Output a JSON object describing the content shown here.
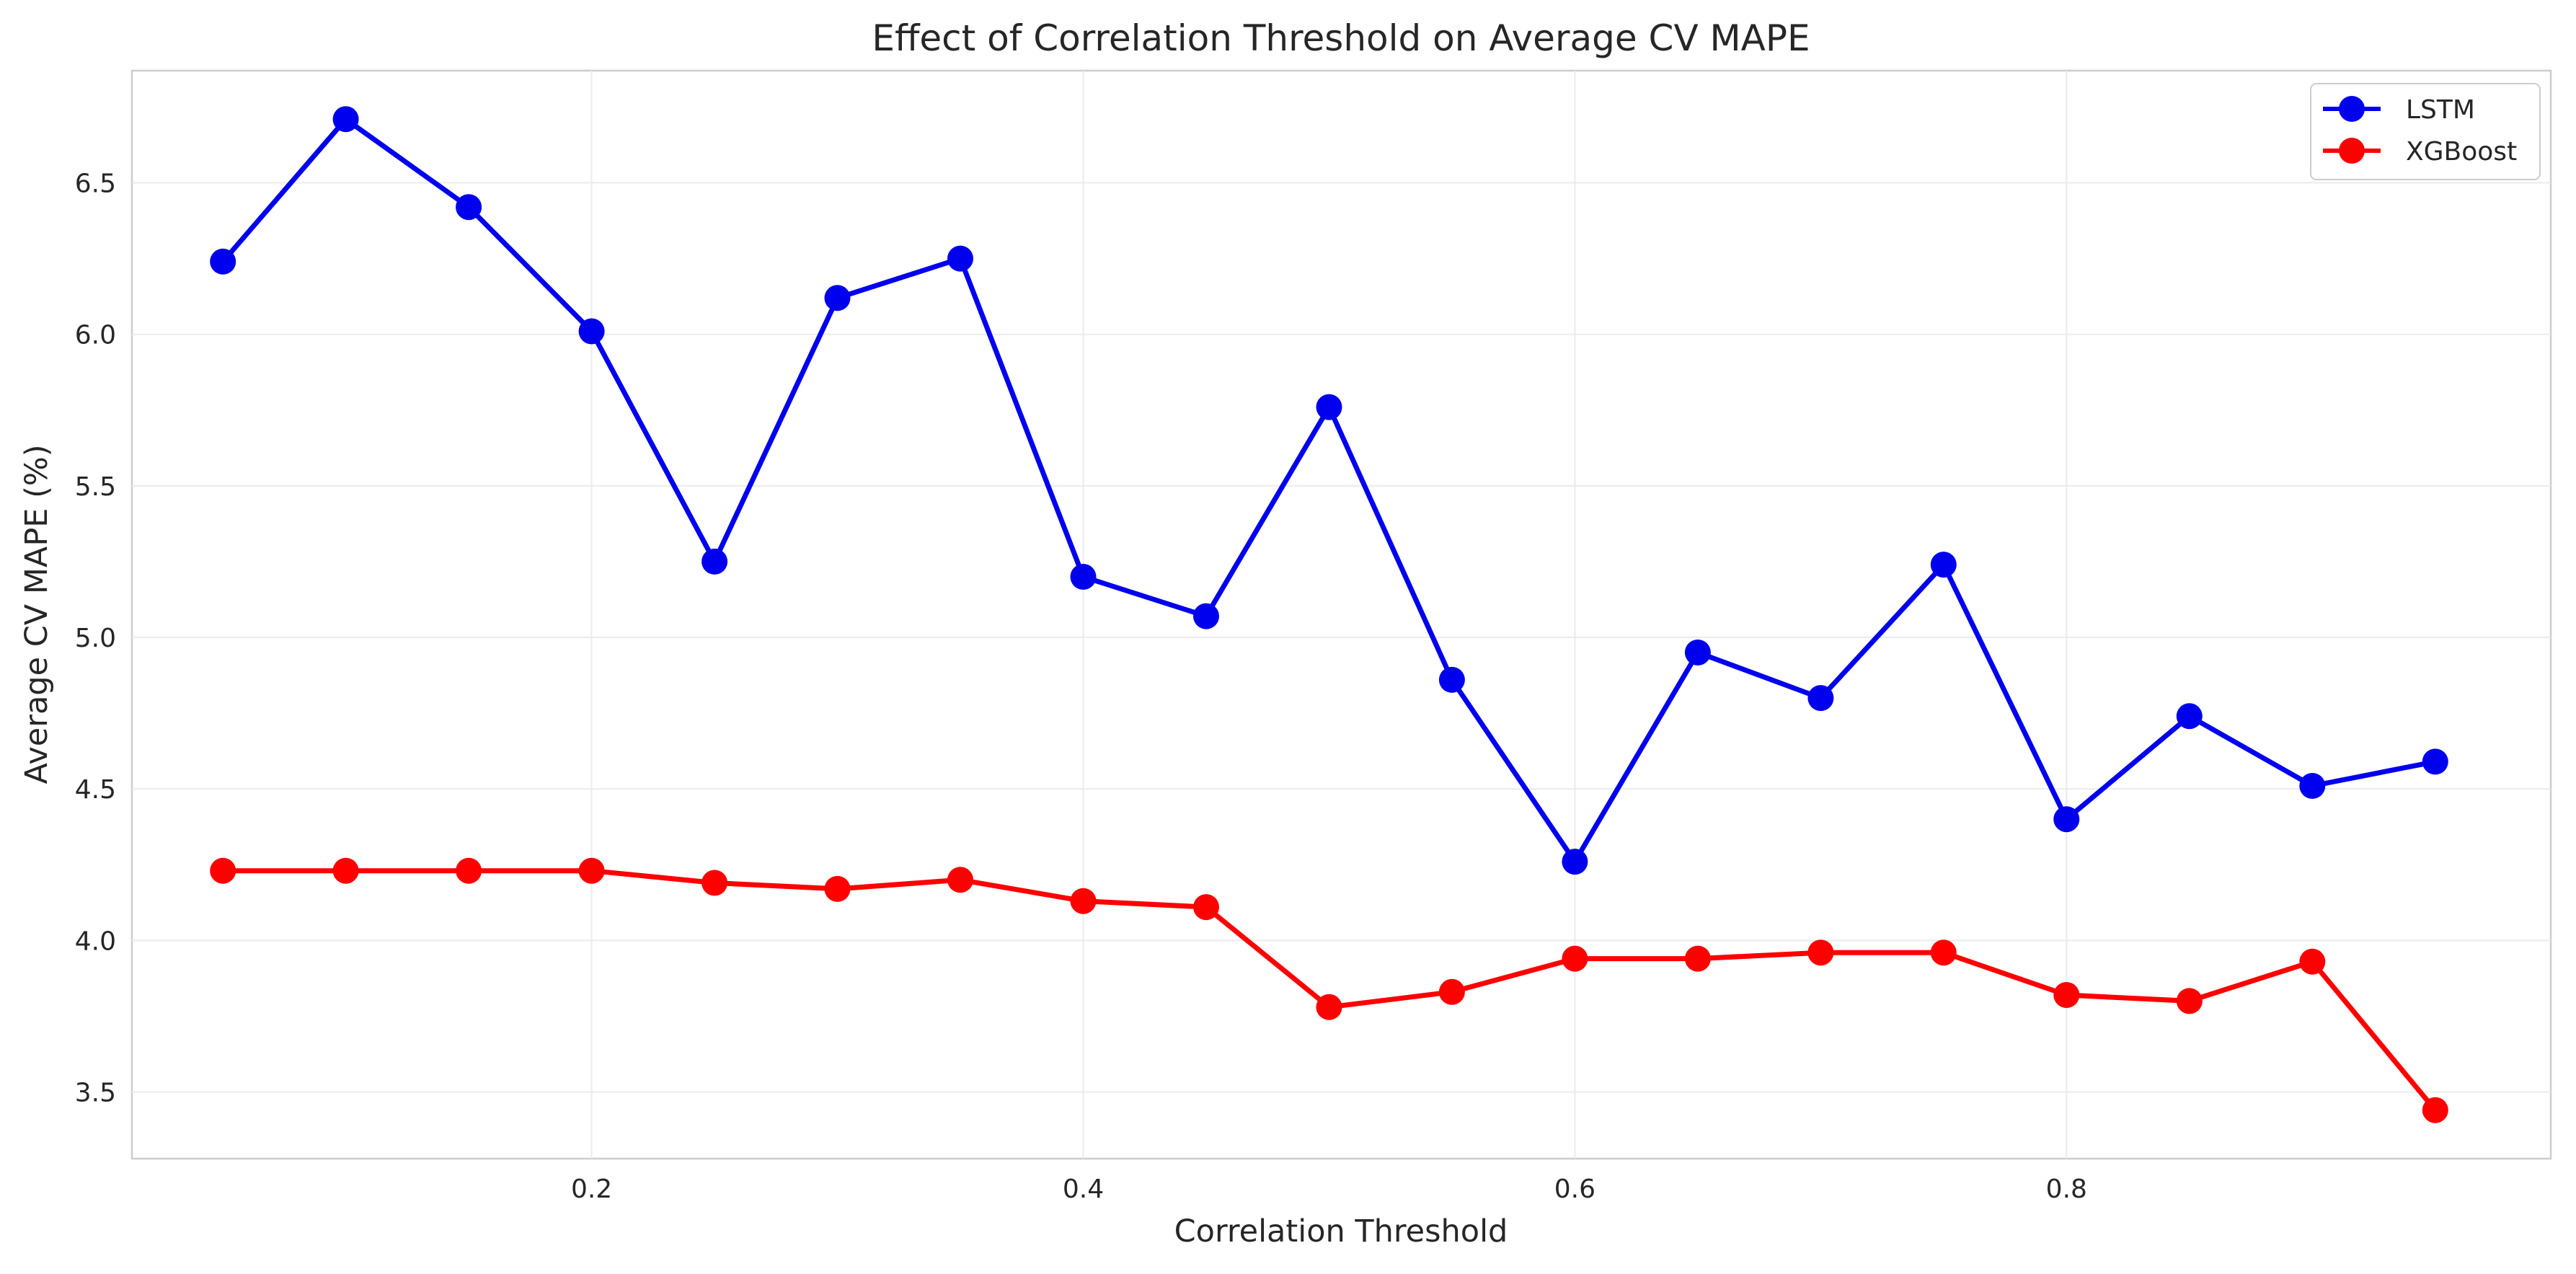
{
  "chart_data": {
    "type": "line",
    "title": "Effect of Correlation Threshold on Average CV MAPE",
    "xlabel": "Correlation Threshold",
    "ylabel": "Average CV MAPE (%)",
    "x": [
      0.05,
      0.1,
      0.15,
      0.2,
      0.25,
      0.3,
      0.35,
      0.4,
      0.45,
      0.5,
      0.55,
      0.6,
      0.65,
      0.7,
      0.75,
      0.8,
      0.85,
      0.9,
      0.95
    ],
    "xlim": [
      0.013,
      0.997
    ],
    "ylim": [
      3.28,
      6.87
    ],
    "xticks": [
      0.2,
      0.4,
      0.6,
      0.8
    ],
    "xtick_labels": [
      "0.2",
      "0.4",
      "0.6",
      "0.8"
    ],
    "yticks": [
      3.5,
      4.0,
      4.5,
      5.0,
      5.5,
      6.0,
      6.5
    ],
    "ytick_labels": [
      "3.5",
      "4.0",
      "4.5",
      "5.0",
      "5.5",
      "6.0",
      "6.5"
    ],
    "grid": true,
    "legend_position": "top-right",
    "series": [
      {
        "name": "LSTM",
        "color": "#0000ee",
        "values": [
          6.24,
          6.71,
          6.42,
          6.01,
          5.25,
          6.12,
          6.25,
          5.2,
          5.07,
          5.76,
          4.86,
          4.26,
          4.95,
          4.8,
          5.24,
          4.4,
          4.74,
          4.51,
          4.59
        ]
      },
      {
        "name": "XGBoost",
        "color": "#ff0000",
        "values": [
          4.23,
          4.23,
          4.23,
          4.23,
          4.19,
          4.17,
          4.2,
          4.13,
          4.11,
          3.78,
          3.83,
          3.94,
          3.94,
          3.96,
          3.96,
          3.82,
          3.8,
          3.93,
          3.44
        ]
      }
    ]
  }
}
